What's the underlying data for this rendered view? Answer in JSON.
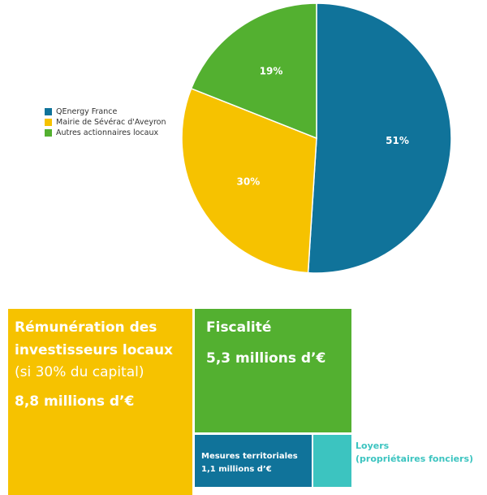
{
  "chart_data": [
    {
      "type": "pie",
      "title": "",
      "slices": [
        {
          "label": "QEnergy France",
          "value": 51,
          "display": "51%",
          "color": "#10739a"
        },
        {
          "label": "Mairie de Sévérac d'Aveyron",
          "value": 30,
          "display": "30%",
          "color": "#f6c200"
        },
        {
          "label": "Autres actionnaires locaux",
          "value": 19,
          "display": "19%",
          "color": "#53b030"
        }
      ],
      "legend_position": "left"
    },
    {
      "type": "treemap",
      "tiles": [
        {
          "key": "remuneration",
          "title_line1": "Rémunération des",
          "title_line2": "investisseurs locaux",
          "note": "(si 30% du capital)",
          "amount": "8,8 millions d’€",
          "value": 8.8,
          "color": "#f6c200"
        },
        {
          "key": "fiscalite",
          "title": "Fiscalité",
          "amount": "5,3 millions d’€",
          "value": 5.3,
          "color": "#53b030"
        },
        {
          "key": "mesures",
          "title": "Mesures territoriales",
          "amount": "1,1 millions d’€",
          "value": 1.1,
          "color": "#10739a"
        },
        {
          "key": "loyers",
          "title_line1": "Loyers",
          "title_line2": "(propriétaires fonciers)",
          "color": "#3cc4c0"
        }
      ]
    }
  ]
}
